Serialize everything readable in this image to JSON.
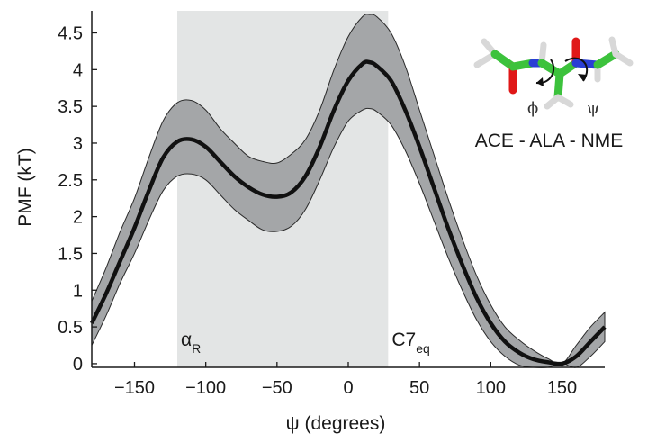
{
  "chart_data": {
    "type": "line",
    "title": "",
    "xlabel": "ψ (degrees)",
    "ylabel": "PMF (kT)",
    "xlim": [
      -180,
      180
    ],
    "ylim": [
      -0.05,
      4.8
    ],
    "xticks": [
      -150,
      -100,
      -50,
      0,
      50,
      100,
      150
    ],
    "yticks": [
      0,
      0.5,
      1,
      1.5,
      2,
      2.5,
      3,
      3.5,
      4,
      4.5
    ],
    "grid": false,
    "shaded_region": {
      "x_start": -120,
      "x_end": 28,
      "color": "#e3e5e5"
    },
    "region_labels": [
      {
        "main": "α",
        "sub": "R",
        "x": -120
      },
      {
        "main": "C7",
        "sub": "eq",
        "x": 28
      }
    ],
    "series": [
      {
        "style": "mean-with-band",
        "line_color": "#111111",
        "band_color": "#a4a6a8",
        "x": [
          -180,
          -170,
          -160,
          -150,
          -140,
          -130,
          -120,
          -110,
          -100,
          -90,
          -80,
          -70,
          -60,
          -50,
          -40,
          -30,
          -20,
          -10,
          0,
          10,
          15,
          20,
          30,
          40,
          50,
          60,
          70,
          80,
          90,
          100,
          110,
          120,
          130,
          140,
          150,
          160,
          170,
          180
        ],
        "y": [
          0.55,
          0.95,
          1.4,
          1.85,
          2.35,
          2.8,
          3.02,
          3.05,
          2.95,
          2.75,
          2.55,
          2.4,
          2.3,
          2.27,
          2.33,
          2.55,
          2.95,
          3.45,
          3.85,
          4.08,
          4.1,
          4.05,
          3.85,
          3.45,
          2.95,
          2.4,
          1.85,
          1.35,
          0.9,
          0.55,
          0.3,
          0.15,
          0.06,
          0.02,
          0.0,
          0.1,
          0.3,
          0.5
        ],
        "lower": [
          0.25,
          0.65,
          1.1,
          1.5,
          1.95,
          2.35,
          2.55,
          2.58,
          2.5,
          2.3,
          2.1,
          1.95,
          1.82,
          1.8,
          1.87,
          2.1,
          2.5,
          2.95,
          3.3,
          3.45,
          3.47,
          3.43,
          3.25,
          2.9,
          2.45,
          1.95,
          1.45,
          1.0,
          0.6,
          0.3,
          0.1,
          -0.02,
          -0.05,
          -0.05,
          0.0,
          -0.05,
          0.1,
          0.3
        ],
        "upper": [
          0.85,
          1.3,
          1.8,
          2.25,
          2.8,
          3.3,
          3.55,
          3.58,
          3.45,
          3.2,
          3.0,
          2.82,
          2.75,
          2.73,
          2.85,
          3.05,
          3.45,
          4.0,
          4.45,
          4.72,
          4.75,
          4.72,
          4.5,
          4.05,
          3.45,
          2.85,
          2.25,
          1.7,
          1.2,
          0.8,
          0.5,
          0.32,
          0.18,
          0.07,
          0.0,
          0.25,
          0.5,
          0.7
        ]
      }
    ]
  },
  "molecule": {
    "name": "ACE - ALA - NME",
    "phi_label": "ϕ",
    "psi_label": "ψ",
    "colors": {
      "carbon": "#3cc23c",
      "nitrogen": "#2a3fd4",
      "oxygen": "#e01818",
      "hydrogen": "#d8d8d8"
    }
  }
}
